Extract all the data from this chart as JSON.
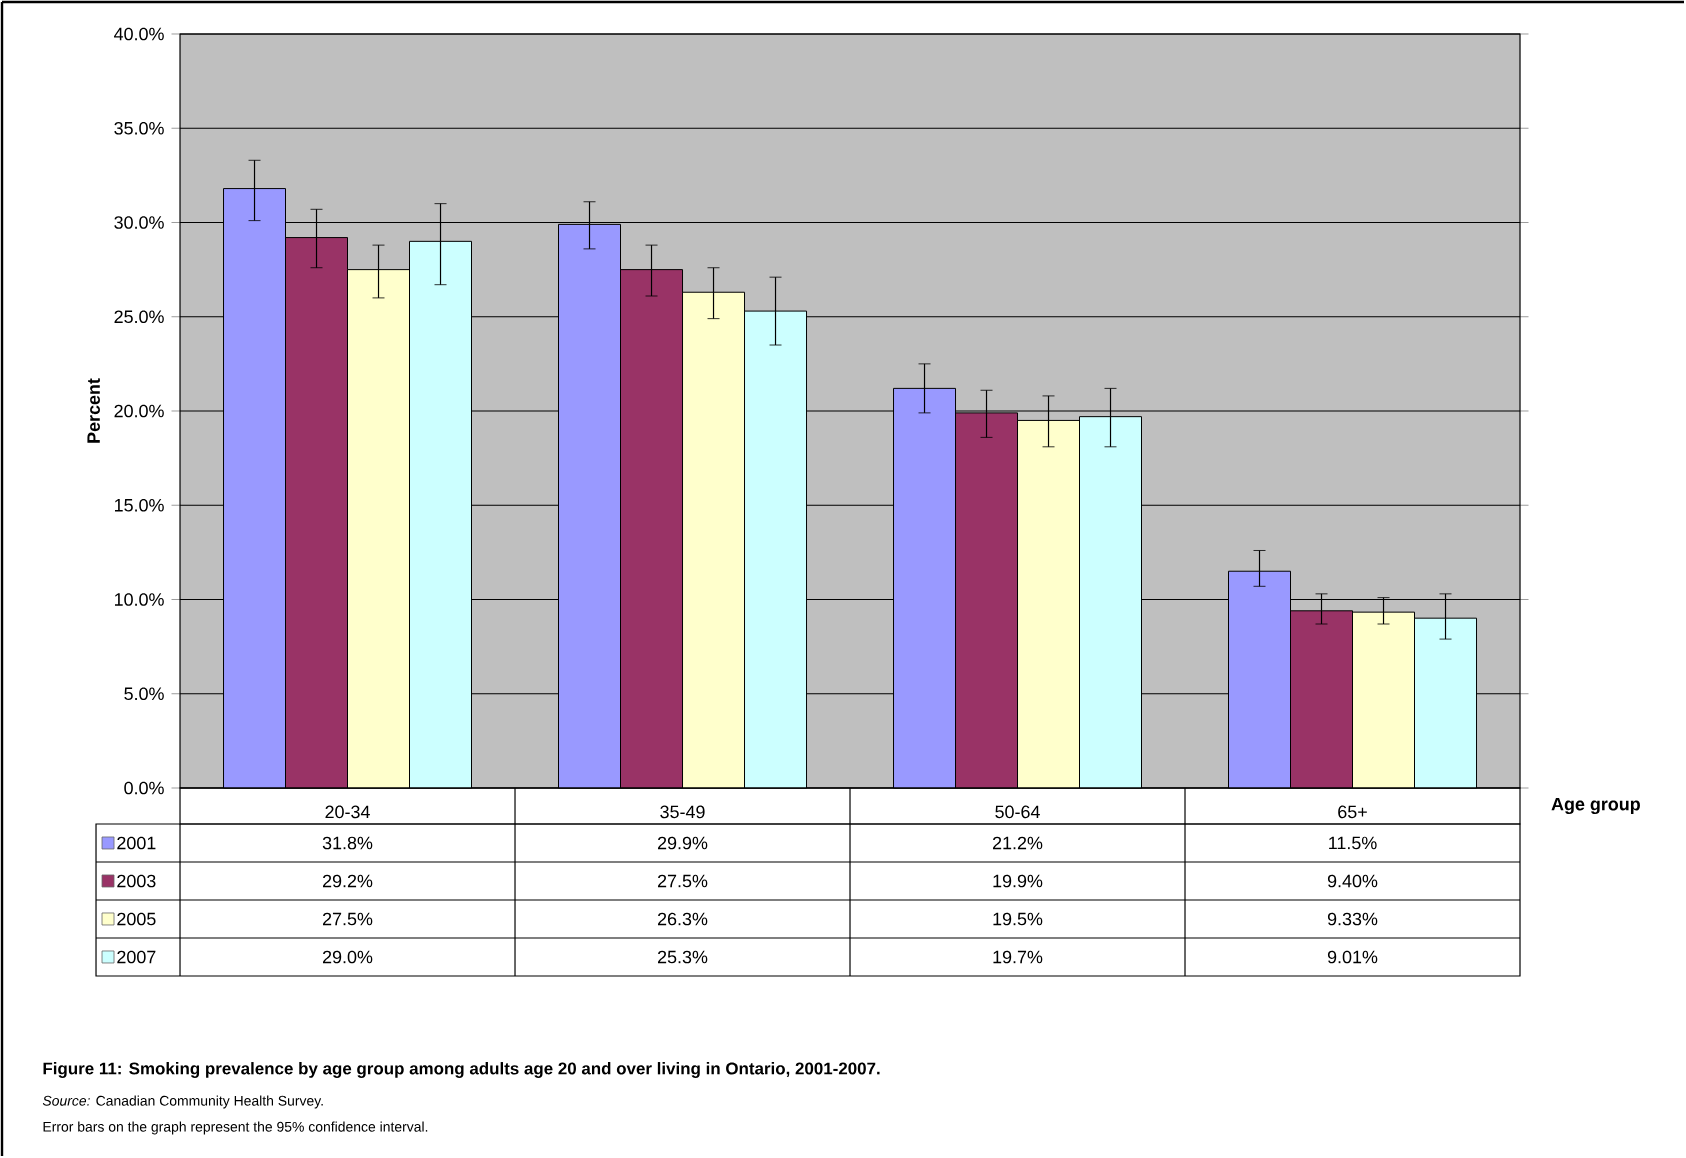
{
  "chart_data": {
    "type": "bar",
    "title": "Figure 11: Smoking prevalence by age group among adults age 20 and over living in Ontario, 2001-2007.",
    "xlabel": "Age group",
    "ylabel": "Percent",
    "annotations": [
      "*Source:* Canadian Community Health Survey.",
      "Error bars on the graph represent the 95% confidence interval."
    ],
    "categories": [
      "20-34",
      "35-49",
      "50-64",
      "65+"
    ],
    "series": [
      {
        "name": "2001",
        "color": "#9999ff",
        "values": [
          31.8,
          29.9,
          21.2,
          11.5
        ],
        "value_labels": [
          "31.8%",
          "29.9%",
          "21.2%",
          "11.5%"
        ],
        "errors": [
          [
            30.1,
            33.3
          ],
          [
            28.6,
            31.1
          ],
          [
            19.9,
            22.5
          ],
          [
            10.7,
            12.6
          ]
        ]
      },
      {
        "name": "2003",
        "color": "#993366",
        "values": [
          29.2,
          27.5,
          19.9,
          9.4
        ],
        "value_labels": [
          "29.2%",
          "27.5%",
          "19.9%",
          "9.40%"
        ],
        "errors": [
          [
            27.6,
            30.7
          ],
          [
            26.1,
            28.8
          ],
          [
            18.6,
            21.1
          ],
          [
            8.7,
            10.3
          ]
        ]
      },
      {
        "name": "2005",
        "color": "#ffffcc",
        "values": [
          27.5,
          26.3,
          19.5,
          9.33
        ],
        "value_labels": [
          "27.5%",
          "26.3%",
          "19.5%",
          "9.33%"
        ],
        "errors": [
          [
            26.0,
            28.8
          ],
          [
            24.9,
            27.6
          ],
          [
            18.1,
            20.8
          ],
          [
            8.7,
            10.1
          ]
        ]
      },
      {
        "name": "2007",
        "color": "#ccffff",
        "values": [
          29.0,
          25.3,
          19.7,
          9.01
        ],
        "value_labels": [
          "29.0%",
          "25.3%",
          "19.7%",
          "9.01%"
        ],
        "errors": [
          [
            26.7,
            31.0
          ],
          [
            23.5,
            27.1
          ],
          [
            18.1,
            21.2
          ],
          [
            7.9,
            10.3
          ]
        ]
      }
    ],
    "ylim": [
      0,
      40
    ],
    "yticks": [
      {
        "value": 0,
        "label": "0.0%"
      },
      {
        "value": 5,
        "label": "5.0%"
      },
      {
        "value": 10,
        "label": "10.0%"
      },
      {
        "value": 15,
        "label": "15.0%"
      },
      {
        "value": 20,
        "label": "20.0%"
      },
      {
        "value": 25,
        "label": "25.0%"
      },
      {
        "value": 30,
        "label": "30.0%"
      },
      {
        "value": 35,
        "label": "35.0%"
      },
      {
        "value": 40,
        "label": "40.0%"
      }
    ],
    "grid": "y",
    "legend": "bottom"
  }
}
